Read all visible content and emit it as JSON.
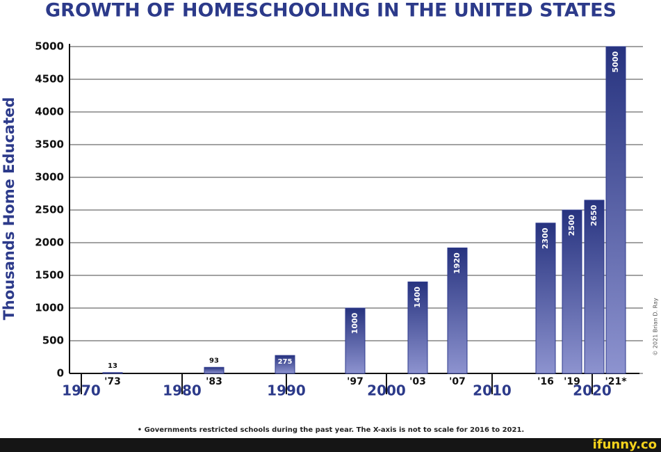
{
  "chart_data": {
    "type": "bar",
    "title": "GROWTH OF HOMESCHOOLING IN THE UNITED STATES",
    "y_label": "Thousands Home Educated",
    "categories": [
      "'73",
      "'83",
      null,
      "'97",
      "'03",
      "'07",
      "'16",
      "'19",
      null,
      "'21*"
    ],
    "values": [
      13,
      93,
      275,
      1000,
      1400,
      1920,
      2300,
      2500,
      2650,
      5000
    ],
    "decades": [
      "1970",
      "1980",
      "1990",
      "2000",
      "2010",
      "2020"
    ],
    "color": "#2e3a8c",
    "ylim": [
      0,
      5000
    ],
    "yticks": [
      0,
      500,
      1000,
      1500,
      2000,
      2500,
      3000,
      3500,
      4000,
      4500,
      5000
    ],
    "grid": true,
    "footnote": "• Governments restricted schools during the past year. The X-axis is not to scale for 2016 to 2021.",
    "copyright": "© 2021 Brian D. Ray",
    "watermark": "ifunny.co"
  }
}
